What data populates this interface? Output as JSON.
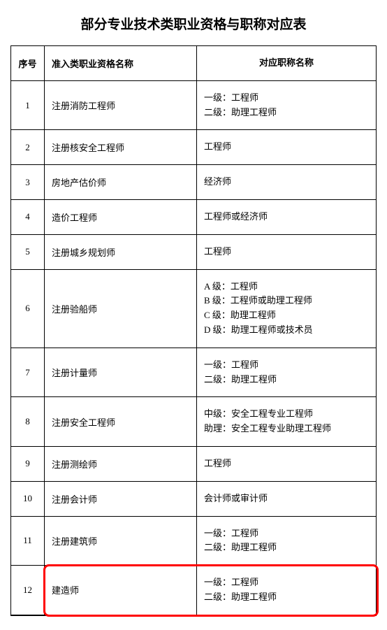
{
  "title": "部分专业技术类职业资格与职称对应表",
  "headers": {
    "num": "序号",
    "qualification": "准入类职业资格名称",
    "jobtitle": "对应职称名称"
  },
  "rows": [
    {
      "num": "1",
      "qualification": "注册消防工程师",
      "jobtitle": "一级：工程师\n二级：助理工程师"
    },
    {
      "num": "2",
      "qualification": "注册核安全工程师",
      "jobtitle": "工程师"
    },
    {
      "num": "3",
      "qualification": "房地产估价师",
      "jobtitle": "经济师"
    },
    {
      "num": "4",
      "qualification": "造价工程师",
      "jobtitle": "工程师或经济师"
    },
    {
      "num": "5",
      "qualification": "注册城乡规划师",
      "jobtitle": "工程师"
    },
    {
      "num": "6",
      "qualification": "注册验船师",
      "jobtitle": "A 级：工程师\nB 级：工程师或助理工程师\nC 级：助理工程师\nD 级：助理工程师或技术员"
    },
    {
      "num": "7",
      "qualification": "注册计量师",
      "jobtitle": "一级：工程师\n二级：助理工程师"
    },
    {
      "num": "8",
      "qualification": "注册安全工程师",
      "jobtitle": "中级：安全工程专业工程师\n助理：安全工程专业助理工程师"
    },
    {
      "num": "9",
      "qualification": "注册测绘师",
      "jobtitle": "工程师"
    },
    {
      "num": "10",
      "qualification": "注册会计师",
      "jobtitle": "会计师或审计师"
    },
    {
      "num": "11",
      "qualification": "注册建筑师",
      "jobtitle": "一级：工程师\n二级：助理工程师"
    },
    {
      "num": "12",
      "qualification": "建造师",
      "jobtitle": "一级：工程师\n二级：助理工程师",
      "highlighted": true
    }
  ],
  "colors": {
    "highlight_border": "#ff0000",
    "text": "#000000",
    "border": "#000000",
    "background": "#ffffff"
  }
}
